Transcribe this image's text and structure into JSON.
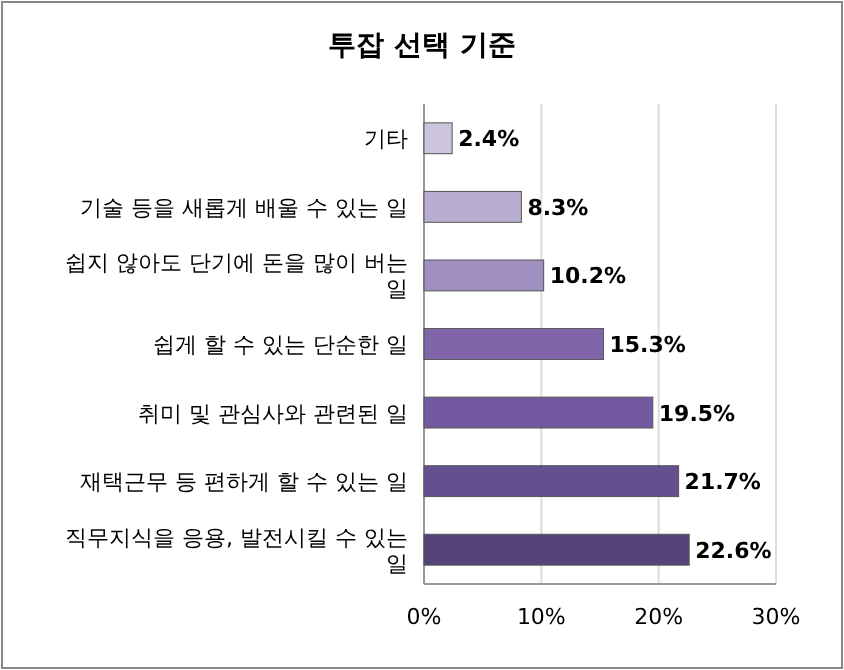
{
  "chart_data": {
    "type": "bar",
    "orientation": "horizontal",
    "title": "투잡 선택 기준",
    "categories": [
      "기타",
      "기술 등을 새롭게 배울 수 있는 일",
      "쉽지 않아도 단기에 돈을 많이 버는 일",
      "쉽게 할 수 있는 단순한 일",
      "취미 및 관심사와 관련된 일",
      "재택근무 등 편하게 할 수 있는 일",
      "직무지식을 응용, 발전시킬 수 있는 일"
    ],
    "values": [
      2.4,
      8.3,
      10.2,
      15.3,
      19.5,
      21.7,
      22.6
    ],
    "colors": [
      "#cbc4dc",
      "#b9aed1",
      "#9f90c1",
      "#8066a9",
      "#7459a0",
      "#65508f",
      "#554479"
    ],
    "value_labels": [
      "2.4%",
      "8.3%",
      "10.2%",
      "15.3%",
      "19.5%",
      "21.7%",
      "22.6%"
    ],
    "xlim": [
      0,
      30
    ],
    "xticks": [
      {
        "value": 0,
        "label": "0%"
      },
      {
        "value": 10,
        "label": "10%"
      },
      {
        "value": 20,
        "label": "20%"
      },
      {
        "value": 30,
        "label": "30%"
      }
    ],
    "grid": "x"
  }
}
